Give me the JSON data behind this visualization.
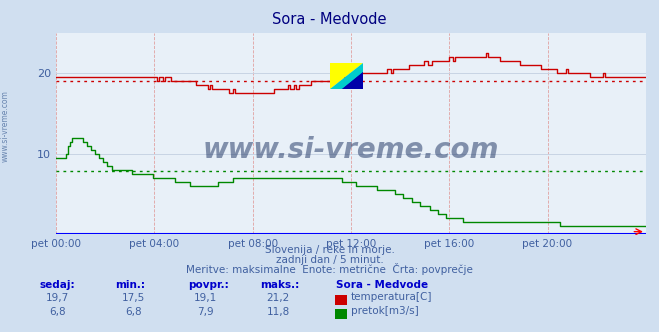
{
  "title": "Sora - Medvode",
  "title_color": "#000080",
  "bg_color": "#d0dff0",
  "plot_bg_color": "#e8f0f8",
  "grid_color_v": "#e08080",
  "grid_color_h": "#c8d4e4",
  "axis_color": "#0000cc",
  "text_color": "#4060a0",
  "watermark_text": "www.si-vreme.com",
  "watermark_color": "#1a3060",
  "subtitle1": "Slovenija / reke in morje.",
  "subtitle2": "zadnji dan / 5 minut.",
  "subtitle3": "Meritve: maksimalne  Enote: metrične  Črta: povprečje",
  "temp_color": "#cc0000",
  "flow_color": "#008800",
  "temp_avg": 19.1,
  "flow_avg": 7.9,
  "ylim": [
    0,
    25
  ],
  "yticks": [
    10,
    20
  ],
  "xtick_labels": [
    "pet 00:00",
    "pet 04:00",
    "pet 08:00",
    "pet 12:00",
    "pet 16:00",
    "pet 20:00"
  ],
  "n_points": 288,
  "table_headers": [
    "sedaj:",
    "min.:",
    "povpr.:",
    "maks.:"
  ],
  "station_label": "Sora - Medvode",
  "label_temp": "temperatura[C]",
  "label_flow": "pretok[m3/s]",
  "table_temp": [
    "19,7",
    "17,5",
    "19,1",
    "21,2"
  ],
  "table_flow": [
    "6,8",
    "6,8",
    "7,9",
    "11,8"
  ],
  "left_label": "www.si-vreme.com"
}
